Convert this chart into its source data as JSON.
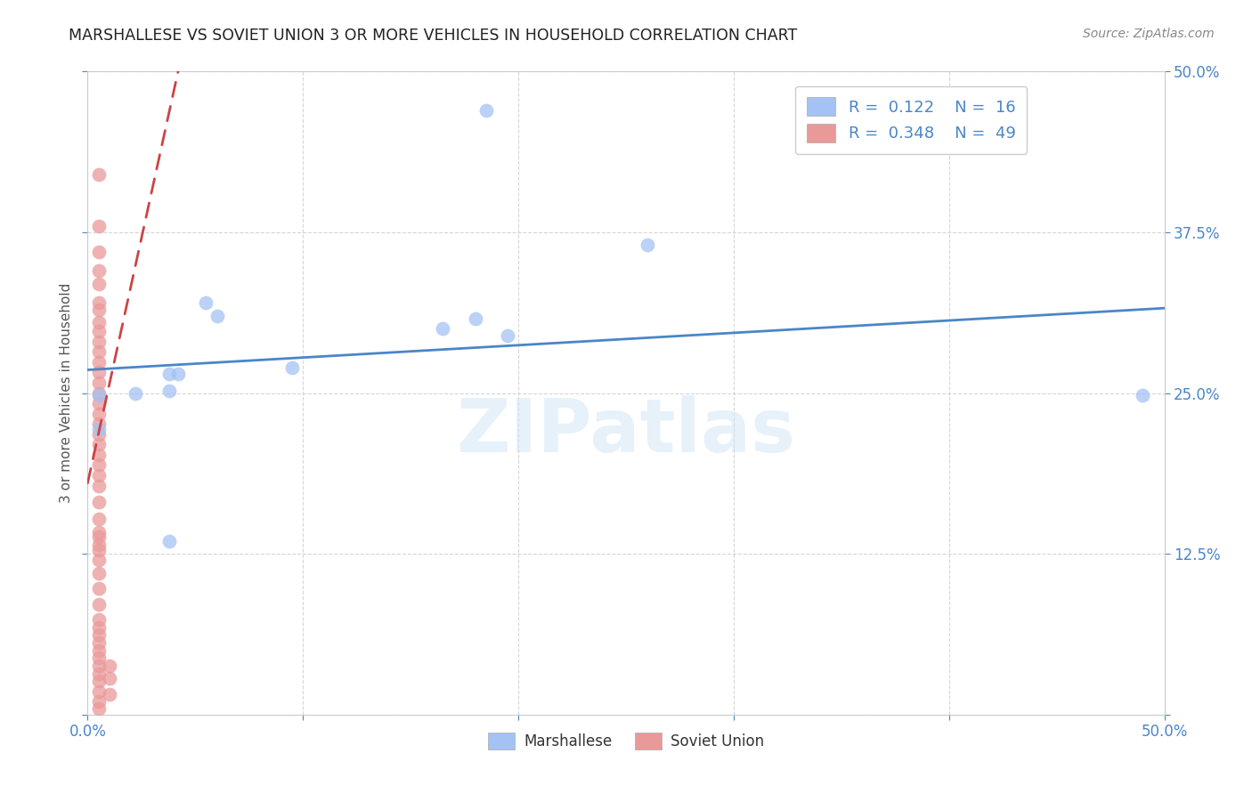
{
  "title": "MARSHALLESE VS SOVIET UNION 3 OR MORE VEHICLES IN HOUSEHOLD CORRELATION CHART",
  "source": "Source: ZipAtlas.com",
  "ylabel": "3 or more Vehicles in Household",
  "watermark": "ZIPatlas",
  "xlim": [
    0.0,
    0.5
  ],
  "ylim": [
    0.0,
    0.5
  ],
  "xticks": [
    0.0,
    0.1,
    0.2,
    0.3,
    0.4,
    0.5
  ],
  "yticks": [
    0.0,
    0.125,
    0.25,
    0.375,
    0.5
  ],
  "xticklabels": [
    "0.0%",
    "",
    "",
    "",
    "",
    "50.0%"
  ],
  "yticklabels": [
    "",
    "12.5%",
    "25.0%",
    "37.5%",
    "50.0%"
  ],
  "legend_blue_r": "0.122",
  "legend_blue_n": "16",
  "legend_pink_r": "0.348",
  "legend_pink_n": "49",
  "blue_color": "#a4c2f4",
  "pink_color": "#ea9999",
  "blue_line_color": "#4a86c8",
  "pink_line_color": "#cc4444",
  "blue_scatter": {
    "x": [
      0.005,
      0.005,
      0.022,
      0.038,
      0.042,
      0.055,
      0.06,
      0.038,
      0.038,
      0.095,
      0.185,
      0.26,
      0.49,
      0.165,
      0.18,
      0.195
    ],
    "y": [
      0.222,
      0.248,
      0.25,
      0.265,
      0.265,
      0.32,
      0.31,
      0.135,
      0.252,
      0.27,
      0.47,
      0.365,
      0.248,
      0.3,
      0.308,
      0.295
    ]
  },
  "pink_scatter": {
    "x": [
      0.005,
      0.005,
      0.005,
      0.005,
      0.005,
      0.005,
      0.005,
      0.005,
      0.005,
      0.005,
      0.005,
      0.005,
      0.005,
      0.005,
      0.005,
      0.005,
      0.005,
      0.005,
      0.005,
      0.005,
      0.005,
      0.005,
      0.005,
      0.005,
      0.005,
      0.005,
      0.005,
      0.005,
      0.005,
      0.005,
      0.005,
      0.005,
      0.005,
      0.005,
      0.005,
      0.005,
      0.005,
      0.005,
      0.005,
      0.005,
      0.005,
      0.005,
      0.01,
      0.01,
      0.01,
      0.005,
      0.005,
      0.005,
      0.005
    ],
    "y": [
      0.42,
      0.38,
      0.36,
      0.345,
      0.335,
      0.32,
      0.315,
      0.305,
      0.298,
      0.29,
      0.282,
      0.274,
      0.266,
      0.258,
      0.25,
      0.242,
      0.234,
      0.226,
      0.218,
      0.21,
      0.202,
      0.194,
      0.186,
      0.178,
      0.165,
      0.152,
      0.142,
      0.132,
      0.12,
      0.11,
      0.098,
      0.086,
      0.074,
      0.062,
      0.05,
      0.038,
      0.026,
      0.018,
      0.01,
      0.005,
      0.138,
      0.128,
      0.038,
      0.028,
      0.016,
      0.068,
      0.056,
      0.044,
      0.032
    ]
  },
  "blue_trendline": {
    "x": [
      0.0,
      0.5
    ],
    "y": [
      0.268,
      0.316
    ]
  },
  "pink_trendline": {
    "x": [
      0.0,
      0.042
    ],
    "y": [
      0.18,
      0.5
    ]
  },
  "background_color": "#ffffff",
  "grid_color": "#cccccc"
}
